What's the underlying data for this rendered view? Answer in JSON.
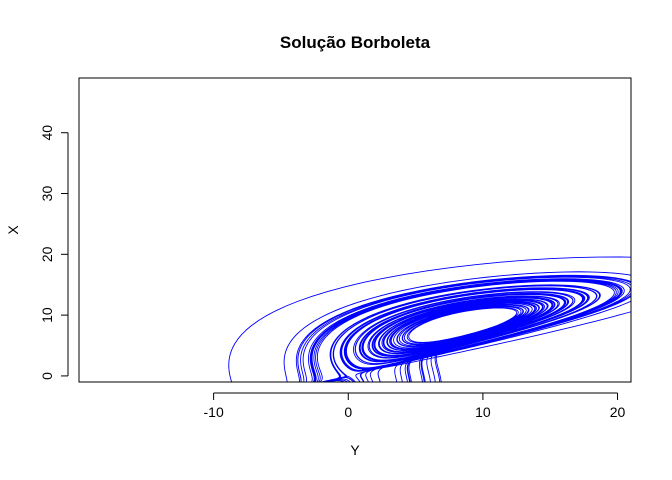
{
  "chart_data": {
    "type": "line",
    "title": "Solução Borboleta",
    "xlabel": "Y",
    "ylabel": "X",
    "xlim": [
      -20,
      21
    ],
    "ylim": [
      -1,
      49
    ],
    "x_ticks": [
      -10,
      0,
      10,
      20
    ],
    "y_ticks": [
      0,
      10,
      20,
      30,
      40
    ],
    "x_tick_labels": [
      "-10",
      "0",
      "10",
      "20"
    ],
    "y_tick_labels": [
      "0",
      "10",
      "20",
      "30",
      "40"
    ],
    "grid": false,
    "legend": "none",
    "series": [
      {
        "color": "#0000ff",
        "generator": {
          "system": "lorenz",
          "sigma": 10,
          "rho": 28,
          "beta": 2.6667,
          "initial": [
            1,
            1,
            1
          ],
          "dt": 0.005,
          "steps": 20000
        }
      }
    ]
  }
}
